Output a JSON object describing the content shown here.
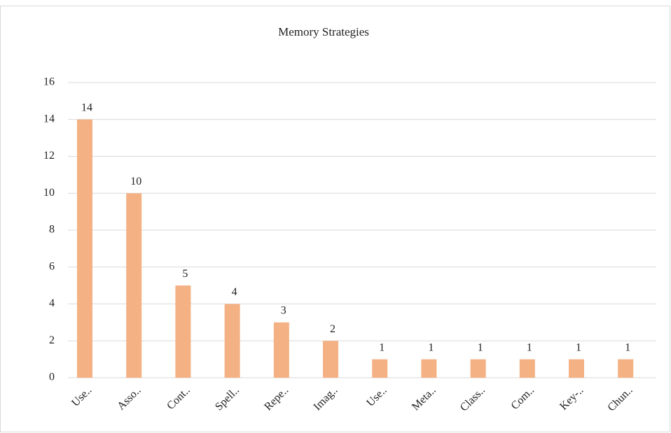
{
  "chart_data": {
    "type": "bar",
    "title": "Memory Strategies",
    "categories": [
      "Use..",
      "Asso..",
      "Cont..",
      "Spell..",
      "Repe..",
      "Imag..",
      "Use..",
      "Meta..",
      "Class..",
      "Com..",
      "Key-..",
      "Chun.."
    ],
    "values": [
      14,
      10,
      5,
      4,
      3,
      2,
      1,
      1,
      1,
      1,
      1,
      1
    ],
    "color": "#f4b183",
    "ylim": [
      0,
      16
    ],
    "yticks": [
      0,
      2,
      4,
      6,
      8,
      10,
      12,
      14,
      16
    ],
    "grid": true
  }
}
